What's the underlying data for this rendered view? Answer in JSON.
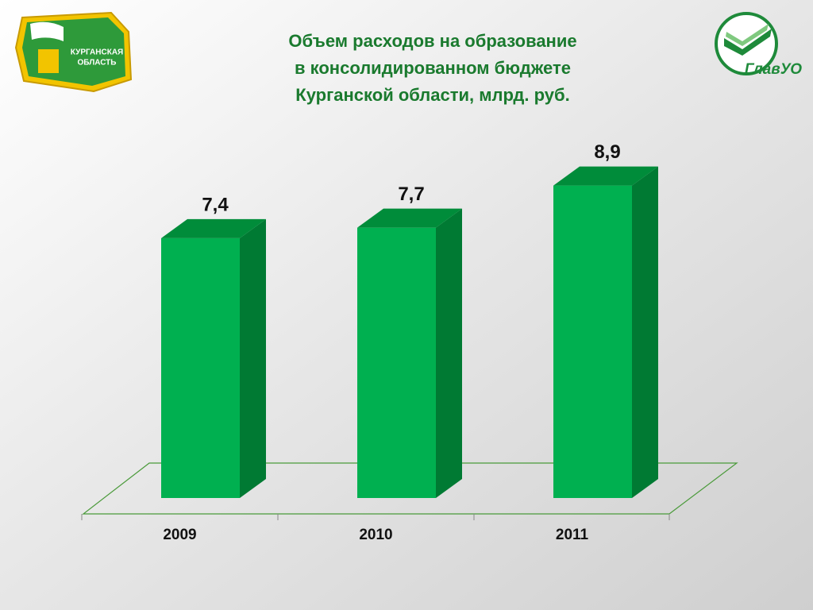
{
  "chart_data": {
    "type": "bar3d",
    "title": [
      "Объем расходов на образование",
      "в консолидированном бюджете",
      "Курганской области, млрд. руб."
    ],
    "categories": [
      "2009",
      "2010",
      "2011"
    ],
    "values": [
      7.4,
      7.7,
      8.9
    ],
    "value_labels": [
      "7,4",
      "7,7",
      "8,9"
    ],
    "color": "#00b050"
  },
  "logos": {
    "left": [
      "КУРГАНСКАЯ",
      "ОБЛАСТЬ"
    ],
    "right": "ГлавУО"
  }
}
